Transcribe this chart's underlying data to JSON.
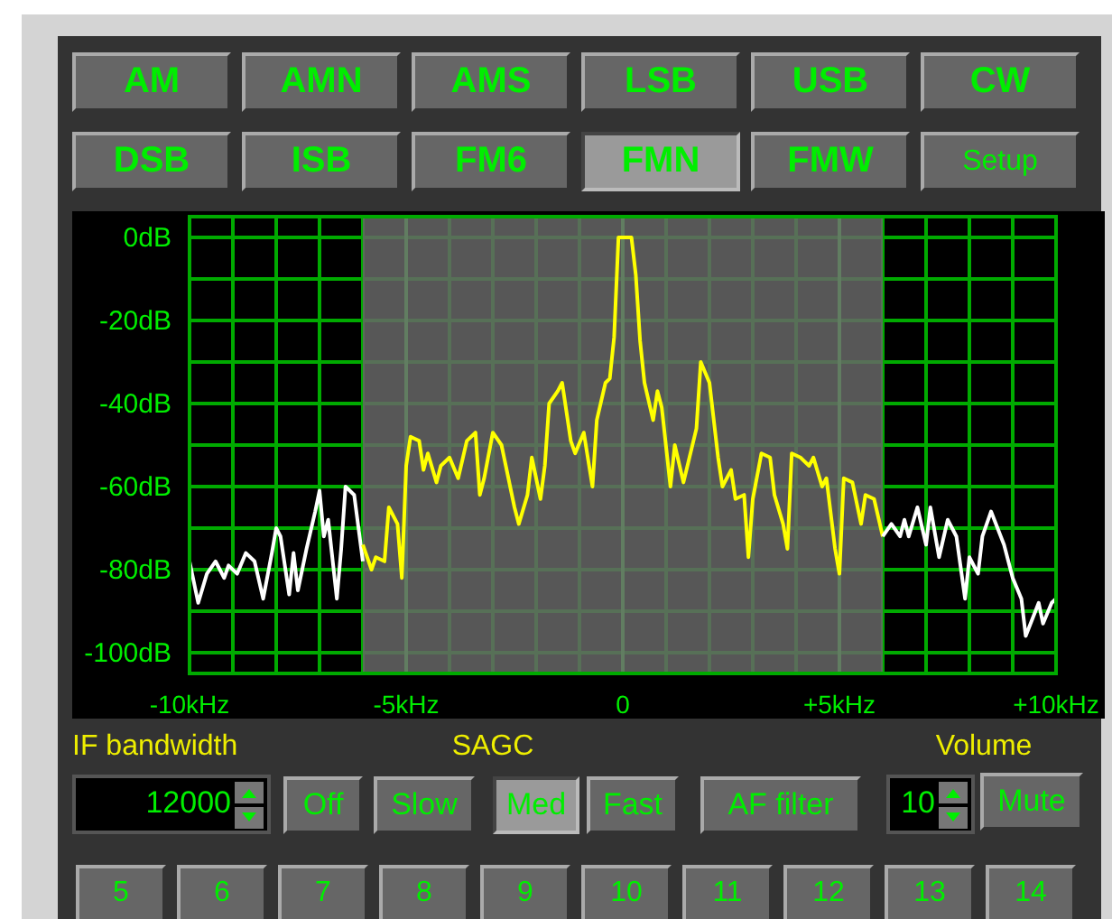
{
  "chart_data": {
    "type": "line",
    "xlim": [
      -10,
      10
    ],
    "ylim": [
      -105,
      5
    ],
    "xticks": [
      {
        "value": -10,
        "label": "-10kHz"
      },
      {
        "value": -9,
        "label": null
      },
      {
        "value": -8,
        "label": null
      },
      {
        "value": -7,
        "label": null
      },
      {
        "value": -6,
        "label": null
      },
      {
        "value": -5,
        "label": "-5kHz"
      },
      {
        "value": -4,
        "label": null
      },
      {
        "value": -3,
        "label": null
      },
      {
        "value": -2,
        "label": null
      },
      {
        "value": -1,
        "label": null
      },
      {
        "value": 0,
        "label": "0"
      },
      {
        "value": 1,
        "label": null
      },
      {
        "value": 2,
        "label": null
      },
      {
        "value": 3,
        "label": null
      },
      {
        "value": 4,
        "label": null
      },
      {
        "value": 5,
        "label": "+5kHz"
      },
      {
        "value": 6,
        "label": null
      },
      {
        "value": 7,
        "label": null
      },
      {
        "value": 8,
        "label": null
      },
      {
        "value": 9,
        "label": null
      },
      {
        "value": 10,
        "label": "+10kHz"
      }
    ],
    "yticks": [
      {
        "value": 0,
        "label": "0dB"
      },
      {
        "value": -10,
        "label": null
      },
      {
        "value": -20,
        "label": "-20dB"
      },
      {
        "value": -30,
        "label": null
      },
      {
        "value": -40,
        "label": "-40dB"
      },
      {
        "value": -50,
        "label": null
      },
      {
        "value": -60,
        "label": "-60dB"
      },
      {
        "value": -70,
        "label": null
      },
      {
        "value": -80,
        "label": "-80dB"
      },
      {
        "value": -90,
        "label": null
      },
      {
        "value": -100,
        "label": "-100dB"
      }
    ],
    "grid": true,
    "marker": "none",
    "line_style": "solid",
    "bands": [
      {
        "axis": "x",
        "from": -6,
        "to": 6,
        "color": "#666666"
      }
    ],
    "series": [
      {
        "color": "#ffffff",
        "x": [
          -10,
          -9.8,
          -9.6,
          -9.4,
          -9.2,
          -9.1,
          -8.9,
          -8.7,
          -8.5,
          -8.3,
          -8.1,
          -8,
          -7.9,
          -7.7,
          -7.6,
          -7.5,
          -7.3,
          -7.1,
          -7,
          -6.9,
          -6.8,
          -6.6,
          -6.5,
          -6.4,
          -6.2,
          -6
        ],
        "values": [
          -78,
          -88,
          -81,
          -78,
          -82,
          -79,
          -81,
          -76,
          -78,
          -87,
          -76,
          -70,
          -72,
          -86,
          -76,
          -85,
          -75,
          -66,
          -61,
          -72,
          -68,
          -87,
          -75,
          -60,
          -62,
          -78
        ]
      },
      {
        "color": "#ffff00",
        "x": [
          -6,
          -5.8,
          -5.7,
          -5.5,
          -5.4,
          -5.2,
          -5.1,
          -5,
          -4.9,
          -4.7,
          -4.6,
          -4.5,
          -4.3,
          -4.2,
          -4,
          -3.8,
          -3.6,
          -3.4,
          -3.3,
          -3.2,
          -3,
          -2.8,
          -2.7,
          -2.5,
          -2.4,
          -2.2,
          -2.1,
          -1.9,
          -1.8,
          -1.7,
          -1.5,
          -1.4,
          -1.2,
          -1.1,
          -0.9,
          -0.7,
          -0.6,
          -0.4,
          -0.3,
          -0.2,
          -0.1,
          0.2,
          0.3,
          0.4,
          0.5,
          0.7,
          0.8,
          0.9,
          1.1,
          1.2,
          1.4,
          1.7,
          1.8,
          2,
          2.2,
          2.3,
          2.5,
          2.6,
          2.8,
          2.9,
          3,
          3.2,
          3.4,
          3.5,
          3.7,
          3.8,
          3.9,
          4.1,
          4.3,
          4.4,
          4.6,
          4.7,
          4.9,
          5,
          5.1,
          5.3,
          5.5,
          5.6,
          5.8,
          6
        ],
        "values": [
          -74,
          -80,
          -77,
          -78,
          -65,
          -69,
          -82,
          -55,
          -48,
          -49,
          -56,
          -52,
          -59,
          -55,
          -53,
          -58,
          -49,
          -47,
          -62,
          -58,
          -47,
          -50,
          -55,
          -65,
          -69,
          -62,
          -53,
          -63,
          -55,
          -40,
          -37,
          -35,
          -49,
          -52,
          -47,
          -60,
          -44,
          -35,
          -34,
          -24,
          0,
          0,
          -9,
          -25,
          -35,
          -44,
          -37,
          -41,
          -60,
          -50,
          -59,
          -46,
          -30,
          -35,
          -53,
          -60,
          -56,
          -63,
          -62,
          -77,
          -63,
          -52,
          -53,
          -62,
          -69,
          -75,
          -52,
          -53,
          -55,
          -53,
          -60,
          -58,
          -75,
          -81,
          -58,
          -59,
          -69,
          -62,
          -63,
          -72
        ]
      },
      {
        "color": "#ffffff",
        "x": [
          6,
          6.2,
          6.4,
          6.5,
          6.6,
          6.8,
          7,
          7.1,
          7.3,
          7.5,
          7.7,
          7.9,
          8,
          8.2,
          8.3,
          8.5,
          8.8,
          9,
          9.2,
          9.3,
          9.6,
          9.7,
          9.9,
          10
        ],
        "values": [
          -72,
          -69,
          -72,
          -68,
          -72,
          -65,
          -74,
          -65,
          -77,
          -68,
          -72,
          -87,
          -77,
          -81,
          -72,
          -66,
          -74,
          -82,
          -87,
          -96,
          -88,
          -93,
          -88,
          -87
        ]
      }
    ],
    "annotations": [
      "AM",
      "AMN",
      "AMS",
      "LSB",
      "USB",
      "CW",
      "DSB",
      "ISB",
      "FM6",
      "FMN",
      "FMW",
      "Setup",
      "IF bandwidth",
      "SAGC",
      "Volume",
      "12000",
      "Off",
      "Slow",
      "Med",
      "Fast",
      "AF filter",
      "10",
      "Mute",
      "5",
      "6",
      "7",
      "8",
      "9",
      "10",
      "11",
      "12",
      "13",
      "14"
    ]
  }
}
